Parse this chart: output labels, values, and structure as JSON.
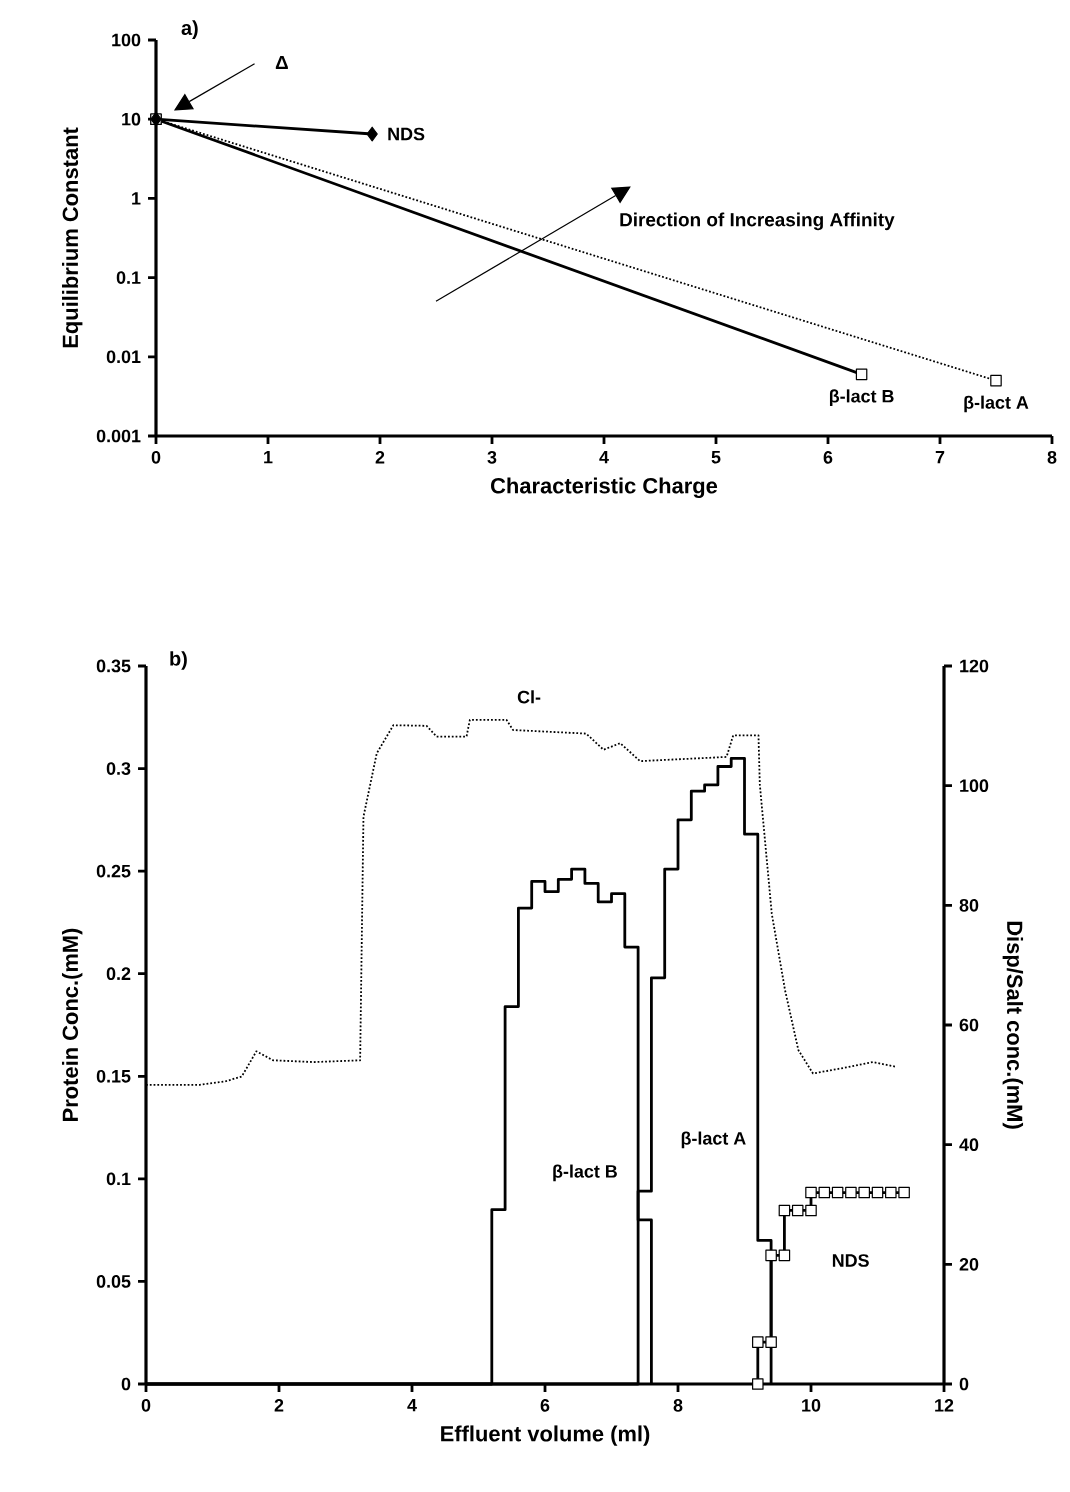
{
  "chart_data": [
    {
      "type": "line",
      "title": "a)",
      "xlabel": "Characteristic Charge",
      "ylabel": "Equilibrium Constant",
      "log": "y",
      "xlim": [
        0,
        8
      ],
      "xticks": [
        0,
        1,
        2,
        3,
        4,
        5,
        6,
        7,
        8
      ],
      "ylim": [
        0.001,
        100
      ],
      "yticks": [
        0.001,
        0.01,
        0.1,
        1,
        10,
        100
      ],
      "annotations": [
        "Δ",
        "Direction of Increasing Affinity"
      ],
      "series": [
        {
          "name": "NDS",
          "color": "#000000",
          "marker": "diamond",
          "line_style": "solid",
          "x": [
            0,
            1.93
          ],
          "values": [
            10,
            6.5
          ]
        },
        {
          "name": "β-lact B",
          "color": "#000000",
          "marker": "square",
          "line_style": "solid",
          "x": [
            0,
            6.3
          ],
          "values": [
            10,
            0.006
          ]
        },
        {
          "name": "β-lact A",
          "color": "#000000",
          "marker": "square",
          "line_style": "dotted",
          "x": [
            0,
            7.5
          ],
          "values": [
            10,
            0.005
          ]
        }
      ]
    },
    {
      "type": "step",
      "title": "b)",
      "xlabel": "Effluent volume (ml)",
      "ylabel": "Protein Conc.(mM)",
      "y2label": "Disp/Salt conc.(mM)",
      "xlim": [
        0,
        12
      ],
      "xticks": [
        0,
        2,
        4,
        6,
        8,
        10,
        12
      ],
      "ylim": [
        0,
        0.35
      ],
      "yticks": [
        0,
        0.05,
        0.1,
        0.15,
        0.2,
        0.25,
        0.3,
        0.35
      ],
      "y2lim": [
        0,
        120
      ],
      "y2ticks": [
        0,
        20,
        40,
        60,
        80,
        100,
        120
      ],
      "series": [
        {
          "name": "β-lact B",
          "color": "#000000",
          "line_style": "solid",
          "x": [
            0,
            5.2,
            5.4,
            5.6,
            5.8,
            6.0,
            6.2,
            6.4,
            6.6,
            6.8,
            7.0,
            7.2,
            7.4,
            7.6
          ],
          "values": [
            0,
            0.085,
            0.184,
            0.232,
            0.245,
            0.24,
            0.246,
            0.251,
            0.244,
            0.235,
            0.239,
            0.213,
            0.08,
            0
          ]
        },
        {
          "name": "β-lact A",
          "color": "#000000",
          "line_style": "solid",
          "x": [
            0,
            7.4,
            7.6,
            7.8,
            8.0,
            8.2,
            8.4,
            8.6,
            8.8,
            9.0,
            9.2,
            9.4
          ],
          "values": [
            0,
            0.094,
            0.198,
            0.251,
            0.275,
            0.289,
            0.292,
            0.301,
            0.305,
            0.268,
            0.07,
            0
          ]
        },
        {
          "name": "Cl-",
          "type": "line",
          "axis": "y2",
          "color": "#000000",
          "line_style": "dotted",
          "x": [
            0,
            0.41,
            0.81,
            1.2,
            1.44,
            1.66,
            1.91,
            2.52,
            3.22,
            3.27,
            3.47,
            3.72,
            4.22,
            4.37,
            4.82,
            4.87,
            5.42,
            5.52,
            6.62,
            6.88,
            7.13,
            7.43,
            8.73,
            8.83,
            9.21,
            9.23,
            9.41,
            9.61,
            9.81,
            10.03,
            10.53,
            10.93,
            11.29
          ],
          "values": [
            50,
            50,
            50,
            50.6,
            51.4,
            55.6,
            54.1,
            53.8,
            54.1,
            94.8,
            105.4,
            110.1,
            110,
            108.2,
            108.2,
            111,
            111,
            109.3,
            108.7,
            106,
            107.1,
            104.1,
            104.8,
            108.4,
            108.4,
            100.2,
            78.6,
            65.8,
            55.8,
            51.9,
            52.9,
            53.8,
            53
          ]
        },
        {
          "name": "NDS",
          "type": "line",
          "axis": "y2",
          "color": "#000000",
          "marker": "square",
          "line_style": "solid",
          "x": [
            9.2,
            9.2,
            9.4,
            9.4,
            9.6,
            9.6,
            9.8,
            10.0,
            10.0,
            10.2,
            10.4,
            10.6,
            10.8,
            11.0,
            11.2,
            11.4
          ],
          "values": [
            0,
            7,
            7,
            21.5,
            21.5,
            29,
            29,
            29,
            32,
            32,
            32,
            32,
            32,
            32,
            32,
            32
          ]
        }
      ]
    }
  ]
}
